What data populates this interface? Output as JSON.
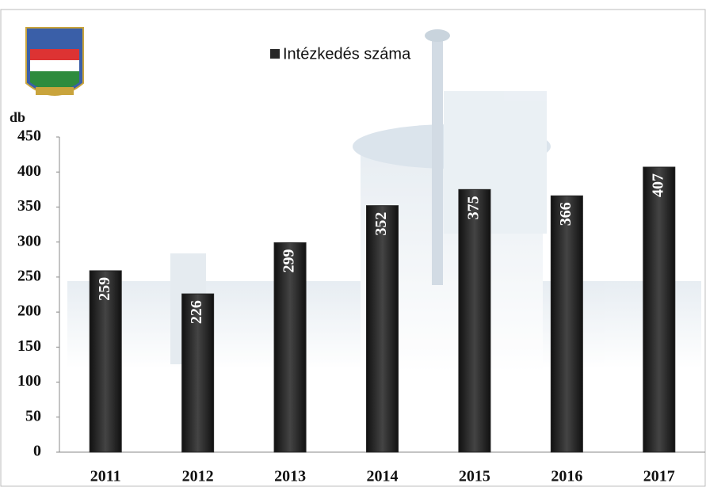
{
  "chart_data": {
    "type": "bar",
    "y_label": "db",
    "categories": [
      "2011",
      "2012",
      "2013",
      "2014",
      "2015",
      "2016",
      "2017"
    ],
    "series": [
      {
        "name": "Intézkedés száma",
        "color": "#262626",
        "values": [
          259,
          226,
          299,
          352,
          375,
          366,
          407
        ]
      }
    ],
    "ylim": [
      0,
      450
    ],
    "yticks": [
      0,
      50,
      100,
      150,
      200,
      250,
      300,
      350,
      400,
      450
    ],
    "legend": "top",
    "data_labels": true
  }
}
